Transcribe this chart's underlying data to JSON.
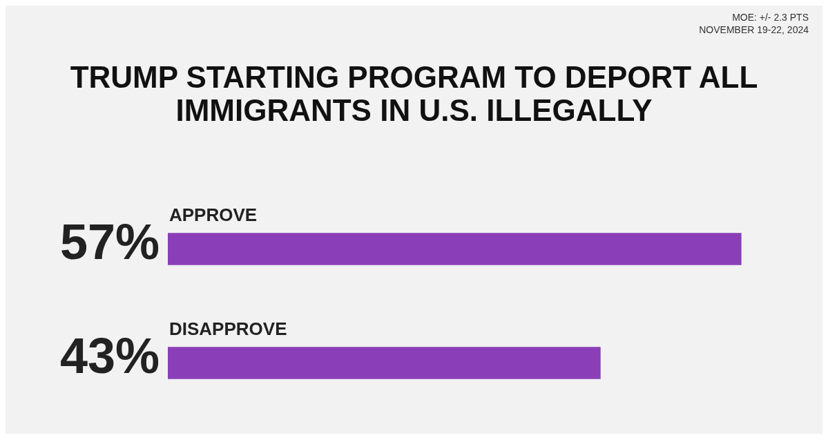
{
  "chart_data": {
    "type": "bar",
    "orientation": "horizontal",
    "title": "TRUMP STARTING PROGRAM TO DEPORT ALL IMMIGRANTS IN U.S. ILLEGALLY",
    "annotations": [
      "MOE: +/- 2.3 PTS",
      "NOVEMBER 19-22, 2024"
    ],
    "categories": [
      "APPROVE",
      "DISAPPROVE"
    ],
    "values": [
      57,
      43
    ],
    "value_labels": [
      "57%",
      "43%"
    ],
    "color": "#8a3fb8"
  }
}
